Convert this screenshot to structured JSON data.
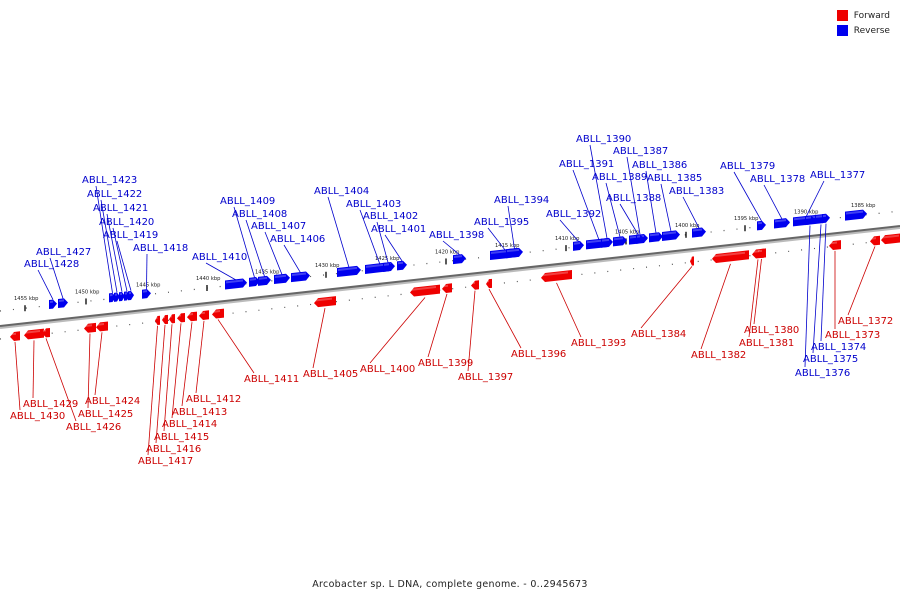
{
  "caption": "Arcobacter sp. L DNA, complete genome. - 0..2945673",
  "legend": [
    {
      "label": "Forward",
      "color": "#ee0000"
    },
    {
      "label": "Reverse",
      "color": "#0000ee"
    }
  ],
  "colors": {
    "forward": "#ee0000",
    "reverse": "#0000ee",
    "forward_label": "#cc0000",
    "reverse_label": "#0000cc",
    "backbone": "#666666"
  },
  "ticks": [
    {
      "label": "1455 kbp",
      "kbp": 1455
    },
    {
      "label": "1450 kbp",
      "kbp": 1450
    },
    {
      "label": "1445 kbp",
      "kbp": 1445
    },
    {
      "label": "1440 kbp",
      "kbp": 1440
    },
    {
      "label": "1435 kbp",
      "kbp": 1435
    },
    {
      "label": "1430 kbp",
      "kbp": 1430
    },
    {
      "label": "1425 kbp",
      "kbp": 1425
    },
    {
      "label": "1420 kbp",
      "kbp": 1420
    },
    {
      "label": "1415 kbp",
      "kbp": 1415
    },
    {
      "label": "1410 kbp",
      "kbp": 1410
    },
    {
      "label": "1405 kbp",
      "kbp": 1405
    },
    {
      "label": "1400 kbp",
      "kbp": 1400
    },
    {
      "label": "1395 kbp",
      "kbp": 1395
    },
    {
      "label": "1390 kbp",
      "kbp": 1390
    },
    {
      "label": "1385 kbp",
      "kbp": 1385
    }
  ],
  "reverse_genes": [
    {
      "name": "ABLL_1428"
    },
    {
      "name": "ABLL_1427"
    },
    {
      "name": "ABLL_1423"
    },
    {
      "name": "ABLL_1422"
    },
    {
      "name": "ABLL_1421"
    },
    {
      "name": "ABLL_1420"
    },
    {
      "name": "ABLL_1419"
    },
    {
      "name": "ABLL_1418"
    },
    {
      "name": "ABLL_1410"
    },
    {
      "name": "ABLL_1409"
    },
    {
      "name": "ABLL_1408"
    },
    {
      "name": "ABLL_1407"
    },
    {
      "name": "ABLL_1406"
    },
    {
      "name": "ABLL_1404"
    },
    {
      "name": "ABLL_1403"
    },
    {
      "name": "ABLL_1402"
    },
    {
      "name": "ABLL_1401"
    },
    {
      "name": "ABLL_1398"
    },
    {
      "name": "ABLL_1395"
    },
    {
      "name": "ABLL_1394"
    },
    {
      "name": "ABLL_1392"
    },
    {
      "name": "ABLL_1391"
    },
    {
      "name": "ABLL_1390"
    },
    {
      "name": "ABLL_1389"
    },
    {
      "name": "ABLL_1388"
    },
    {
      "name": "ABLL_1387"
    },
    {
      "name": "ABLL_1386"
    },
    {
      "name": "ABLL_1385"
    },
    {
      "name": "ABLL_1383"
    },
    {
      "name": "ABLL_1379"
    },
    {
      "name": "ABLL_1378"
    },
    {
      "name": "ABLL_1377"
    },
    {
      "name": "ABLL_1376"
    },
    {
      "name": "ABLL_1375"
    },
    {
      "name": "ABLL_1374"
    }
  ],
  "forward_genes": [
    {
      "name": "ABLL_1430"
    },
    {
      "name": "ABLL_1429"
    },
    {
      "name": "ABLL_1426"
    },
    {
      "name": "ABLL_1425"
    },
    {
      "name": "ABLL_1424"
    },
    {
      "name": "ABLL_1417"
    },
    {
      "name": "ABLL_1416"
    },
    {
      "name": "ABLL_1415"
    },
    {
      "name": "ABLL_1414"
    },
    {
      "name": "ABLL_1413"
    },
    {
      "name": "ABLL_1412"
    },
    {
      "name": "ABLL_1411"
    },
    {
      "name": "ABLL_1405"
    },
    {
      "name": "ABLL_1400"
    },
    {
      "name": "ABLL_1399"
    },
    {
      "name": "ABLL_1397"
    },
    {
      "name": "ABLL_1396"
    },
    {
      "name": "ABLL_1393"
    },
    {
      "name": "ABLL_1384"
    },
    {
      "name": "ABLL_1382"
    },
    {
      "name": "ABLL_1381"
    },
    {
      "name": "ABLL_1380"
    },
    {
      "name": "ABLL_1373"
    },
    {
      "name": "ABLL_1372"
    }
  ]
}
